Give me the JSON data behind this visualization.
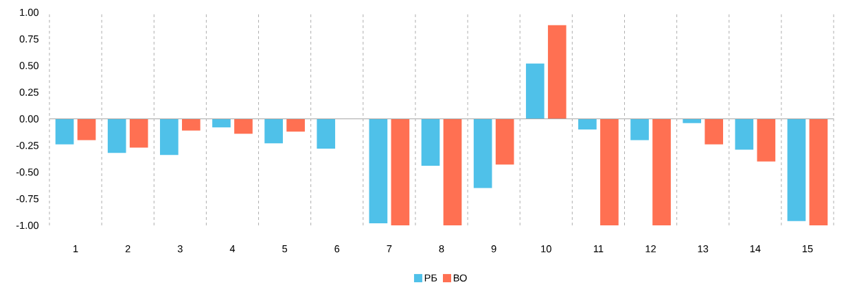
{
  "chart_data": {
    "type": "bar",
    "categories": [
      "1",
      "2",
      "3",
      "4",
      "5",
      "6",
      "7",
      "8",
      "9",
      "10",
      "11",
      "12",
      "13",
      "14",
      "15"
    ],
    "series": [
      {
        "name": "РБ",
        "color": "#4fc1e9",
        "values": [
          -0.24,
          -0.32,
          -0.34,
          -0.08,
          -0.23,
          -0.28,
          -0.98,
          -0.44,
          -0.65,
          0.52,
          -0.1,
          -0.2,
          -0.04,
          -0.29,
          -0.96
        ]
      },
      {
        "name": "ВО",
        "color": "#ff7052",
        "values": [
          -0.2,
          -0.27,
          -0.11,
          -0.14,
          -0.12,
          0.0,
          -1.0,
          -1.0,
          -0.43,
          0.88,
          -1.0,
          -1.0,
          -0.24,
          -0.4,
          -1.0
        ]
      }
    ],
    "ylim": [
      -1.0,
      1.0
    ],
    "yticks": [
      {
        "value": -1.0,
        "label": "-1.00"
      },
      {
        "value": -0.75,
        "label": "-0.75"
      },
      {
        "value": -0.5,
        "label": "-0.50"
      },
      {
        "value": -0.25,
        "label": "-0.25"
      },
      {
        "value": 0.0,
        "label": "0.00"
      },
      {
        "value": 0.25,
        "label": "0.25"
      },
      {
        "value": 0.5,
        "label": "0.50"
      },
      {
        "value": 0.75,
        "label": "0.75"
      },
      {
        "value": 1.0,
        "label": "1.00"
      }
    ],
    "grid": "x",
    "legend": "bottom"
  }
}
